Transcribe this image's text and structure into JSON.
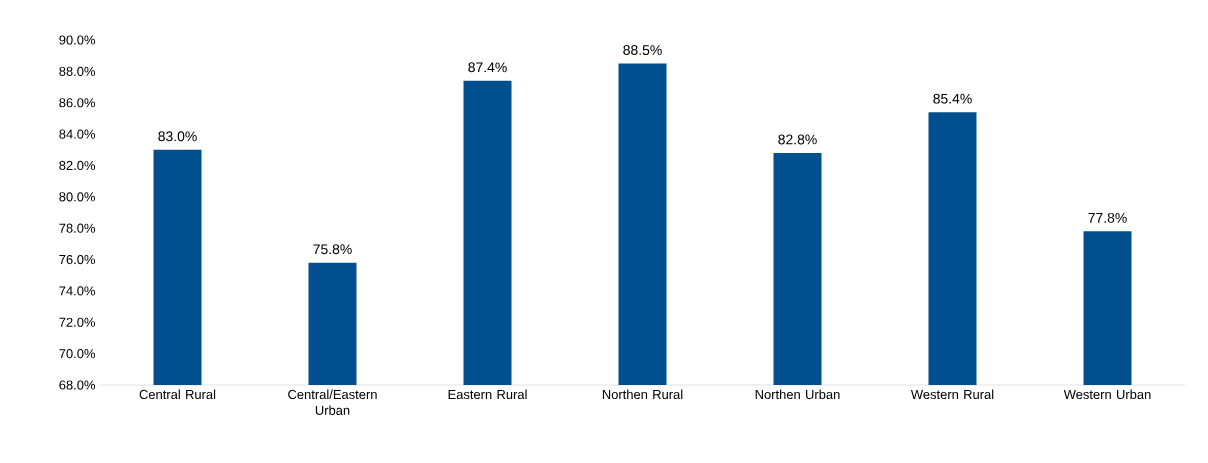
{
  "chart_data": {
    "type": "bar",
    "categories": [
      "Central Rural",
      "Central/Eastern Urban",
      "Eastern Rural",
      "Northen Rural",
      "Northen Urban",
      "Western Rural",
      "Western Urban"
    ],
    "values": [
      83.0,
      75.8,
      87.4,
      88.5,
      82.8,
      85.4,
      77.8
    ],
    "value_labels": [
      "83.0%",
      "75.8%",
      "87.4%",
      "88.5%",
      "82.8%",
      "85.4%",
      "77.8%"
    ],
    "color": "#00508f",
    "ylim": [
      68,
      90
    ],
    "yticks": [
      {
        "value": 68,
        "label": "68.0%"
      },
      {
        "value": 70,
        "label": "70.0%"
      },
      {
        "value": 72,
        "label": "72.0%"
      },
      {
        "value": 74,
        "label": "74.0%"
      },
      {
        "value": 76,
        "label": "76.0%"
      },
      {
        "value": 78,
        "label": "78.0%"
      },
      {
        "value": 80,
        "label": "80.0%"
      },
      {
        "value": 82,
        "label": "82.0%"
      },
      {
        "value": 84,
        "label": "84.0%"
      },
      {
        "value": 86,
        "label": "86.0%"
      },
      {
        "value": 88,
        "label": "88.0%"
      },
      {
        "value": 90,
        "label": "90.0%"
      }
    ]
  }
}
